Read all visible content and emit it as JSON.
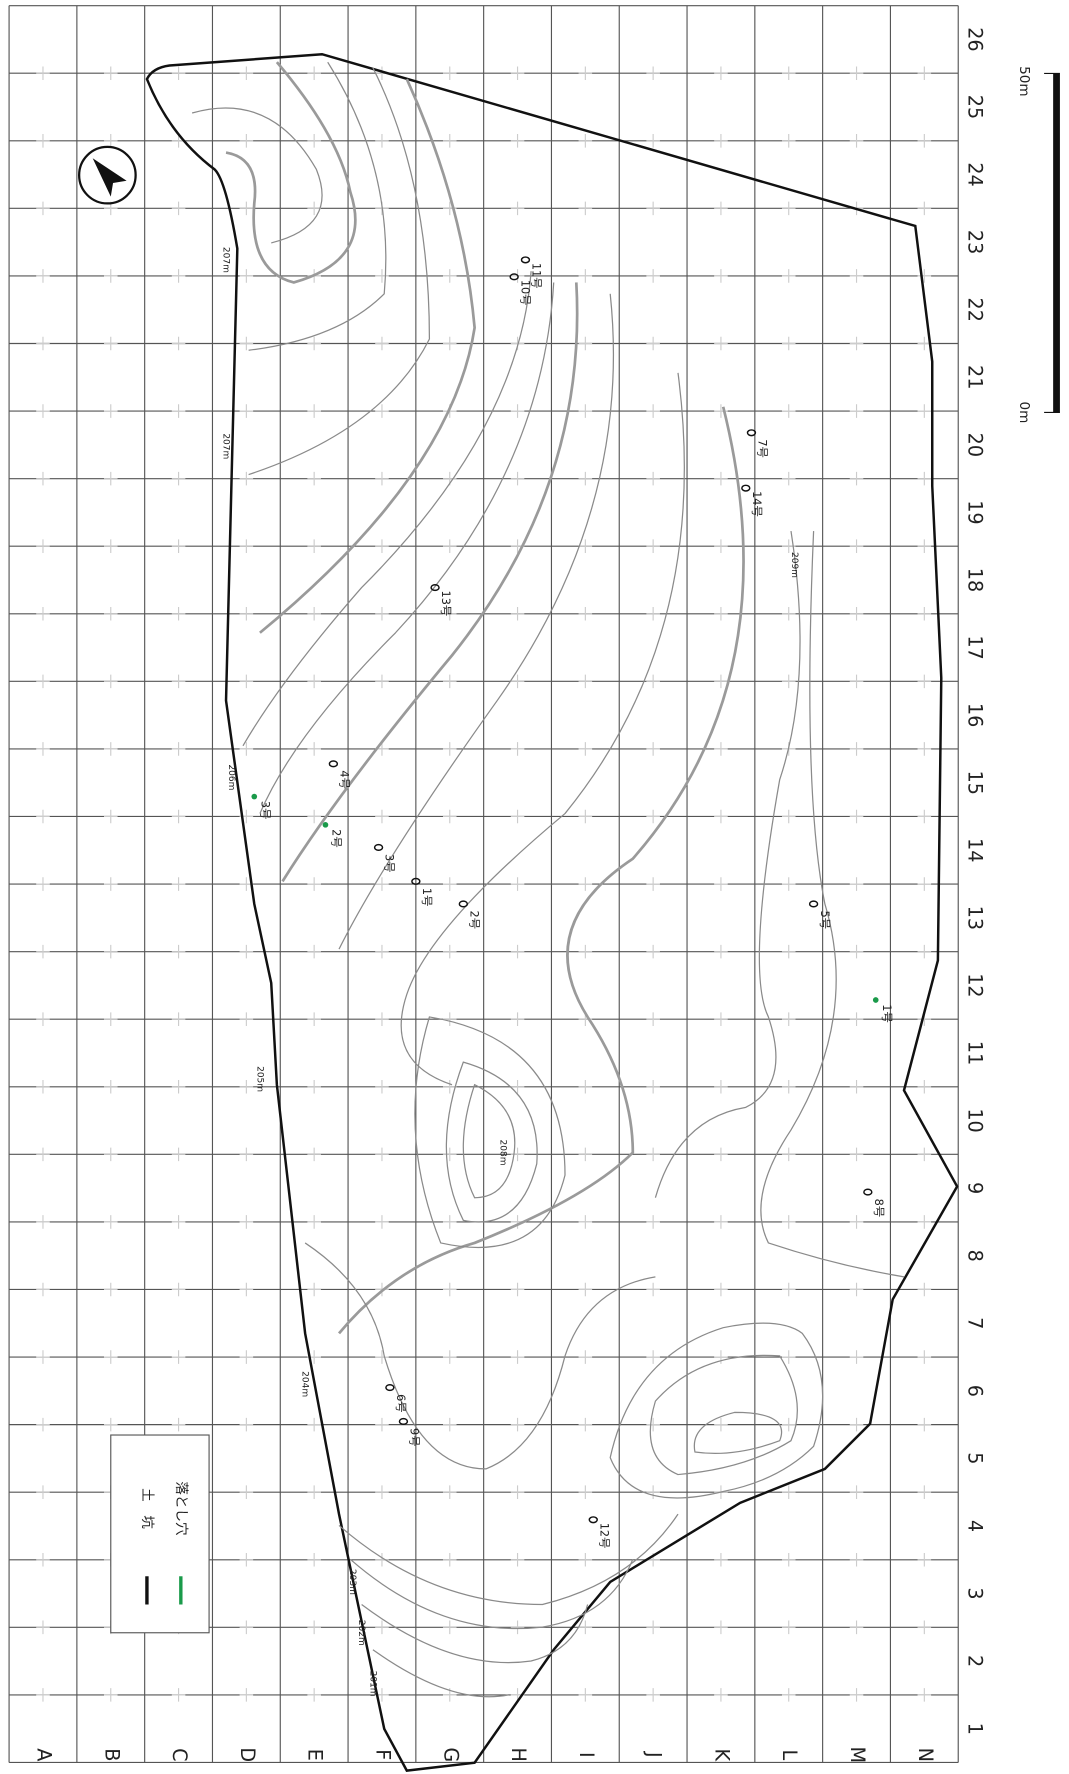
{
  "grid": {
    "columns": [
      "A",
      "B",
      "C",
      "D",
      "E",
      "F",
      "G",
      "H",
      "I",
      "J",
      "K",
      "L",
      "M",
      "N"
    ],
    "rows": [
      1,
      2,
      3,
      4,
      5,
      6,
      7,
      8,
      9,
      10,
      11,
      12,
      13,
      14,
      15,
      16,
      17,
      18,
      19,
      20,
      21,
      22,
      23,
      24,
      25,
      26
    ]
  },
  "scale": {
    "start": "0m",
    "end": "50m"
  },
  "legend": [
    {
      "label": "土　坑",
      "color": "#111111"
    },
    {
      "label": "落とし穴",
      "color": "#1a9a4a"
    }
  ],
  "pits": [
    "1号",
    "2号",
    "3号",
    "4号",
    "5号",
    "6号",
    "7号",
    "8号",
    "9号",
    "10号",
    "11号",
    "12号",
    "13号",
    "14号"
  ],
  "pitfalls": [
    "1号",
    "2号",
    "3号"
  ],
  "contour_labels": [
    "207m",
    "207m",
    "206m",
    "205m",
    "204m",
    "203m",
    "202m",
    "201m",
    "208m",
    "209m"
  ]
}
